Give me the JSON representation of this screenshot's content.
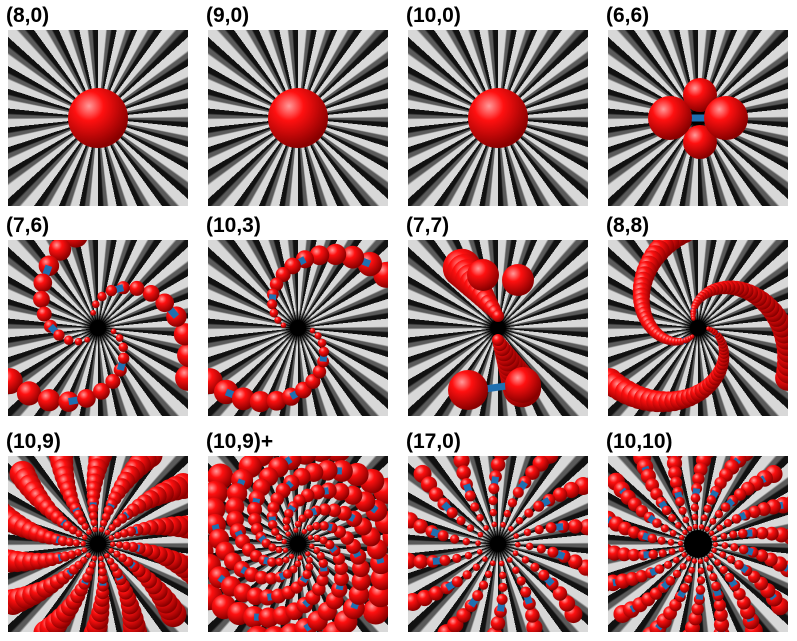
{
  "figure": {
    "panels": [
      {
        "label": "(8,0)",
        "style": "single"
      },
      {
        "label": "(9,0)",
        "style": "single"
      },
      {
        "label": "(10,0)",
        "style": "single"
      },
      {
        "label": "(6,6)",
        "style": "cluster"
      },
      {
        "label": "(7,6)",
        "style": "ring"
      },
      {
        "label": "(10,3)",
        "style": "spiral-sparse"
      },
      {
        "label": "(7,7)",
        "style": "pair"
      },
      {
        "label": "(8,8)",
        "style": "spiral"
      },
      {
        "label": "(10,9)",
        "style": "spokes"
      },
      {
        "label": "(10,9)+",
        "style": "swirl"
      },
      {
        "label": "(17,0)",
        "style": "rings"
      },
      {
        "label": "(10,10)",
        "style": "dense"
      }
    ],
    "colors": {
      "atom": "#e00000",
      "bond": "#1f6fb0",
      "tube": "#bdbdbd"
    }
  }
}
